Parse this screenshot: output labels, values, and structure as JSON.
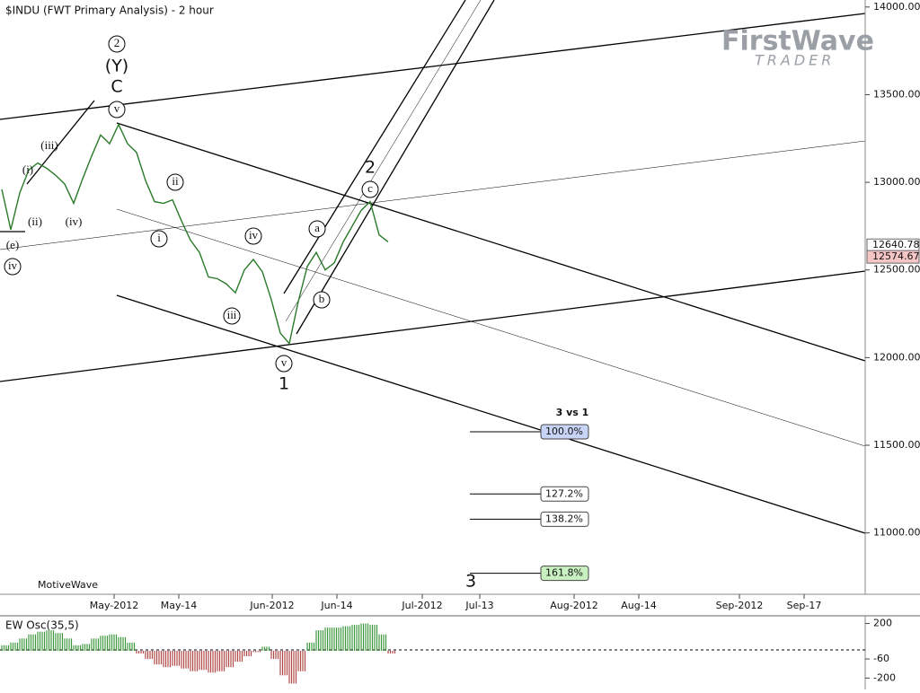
{
  "chart_data": {
    "type": "line",
    "title": "$INDU (FWT Primary Analysis) - 2 hour",
    "logo": {
      "first": "FirstWave",
      "second": "TRADER"
    },
    "platform": "MotiveWave",
    "ylim": [
      10650,
      14040
    ],
    "yticks": [
      {
        "value": 14000,
        "label": "14000.00"
      },
      {
        "value": 13500,
        "label": "13500.00"
      },
      {
        "value": 13000,
        "label": "13000.00"
      },
      {
        "value": 12500,
        "label": "12500.00"
      },
      {
        "value": 12000,
        "label": "12000.00"
      },
      {
        "value": 11500,
        "label": "11500.00"
      },
      {
        "value": 11000,
        "label": "11000.00"
      }
    ],
    "x_labels": [
      "May-2012",
      "May-14",
      "Jun-2012",
      "Jun-14",
      "Jul-2012",
      "Jul-13",
      "Aug-2012",
      "Aug-14",
      "Sep-2012",
      "Sep-17"
    ],
    "series": [
      {
        "color": "#2a7a2a",
        "values": [
          12960,
          12730,
          12940,
          13070,
          13110,
          13080,
          13040,
          12990,
          12880,
          13020,
          13150,
          13270,
          13220,
          13330,
          13220,
          13170,
          13010,
          12890,
          12880,
          12900,
          12780,
          12670,
          12600,
          12460,
          12450,
          12420,
          12370,
          12500,
          12560,
          12490,
          12330,
          12140,
          12080,
          12320,
          12520,
          12600,
          12500,
          12540,
          12660,
          12750,
          12840,
          12890,
          12700,
          12660
        ]
      }
    ],
    "price_tags": [
      {
        "value": 12640.78,
        "label": "12640.78",
        "color": "#ffffff"
      },
      {
        "value": 12574.67,
        "label": "12574.67",
        "color": "#f6c6c6"
      }
    ],
    "wave_labels": [
      "2",
      "(Y)",
      "C",
      "v",
      "(iii)",
      "(i)",
      "(ii)",
      "(iv)",
      "(e)",
      "iv",
      "ii",
      "i",
      "iv",
      "iii",
      "v",
      "1",
      "a",
      "b",
      "c",
      "2",
      "3"
    ],
    "fib_title": "3 vs 1",
    "fib_levels": [
      {
        "value": 100.0,
        "label": "100.0%",
        "price": 11577,
        "color": "#c8d4f5"
      },
      {
        "value": 127.2,
        "label": "127.2%",
        "price": 11222,
        "color": "#ffffff"
      },
      {
        "value": 138.2,
        "label": "138.2%",
        "price": 11078,
        "color": "#ffffff"
      },
      {
        "value": 161.8,
        "label": "161.8%",
        "price": 10770,
        "color": "#c8f0c0"
      }
    ],
    "oscillator": {
      "title": "EW Osc(35,5)",
      "ylim": [
        -270,
        230
      ],
      "yticks": [
        200,
        -60,
        -200
      ],
      "positive_color": "#3c963c",
      "negative_color": "#b04848",
      "values": [
        40,
        60,
        90,
        120,
        140,
        150,
        130,
        90,
        40,
        50,
        90,
        110,
        120,
        100,
        60,
        -20,
        -60,
        -100,
        -120,
        -110,
        -130,
        -150,
        -140,
        -160,
        -150,
        -120,
        -80,
        -40,
        -10,
        30,
        -60,
        -180,
        -240,
        -150,
        60,
        150,
        170,
        170,
        180,
        190,
        200,
        190,
        120,
        -20
      ]
    }
  }
}
